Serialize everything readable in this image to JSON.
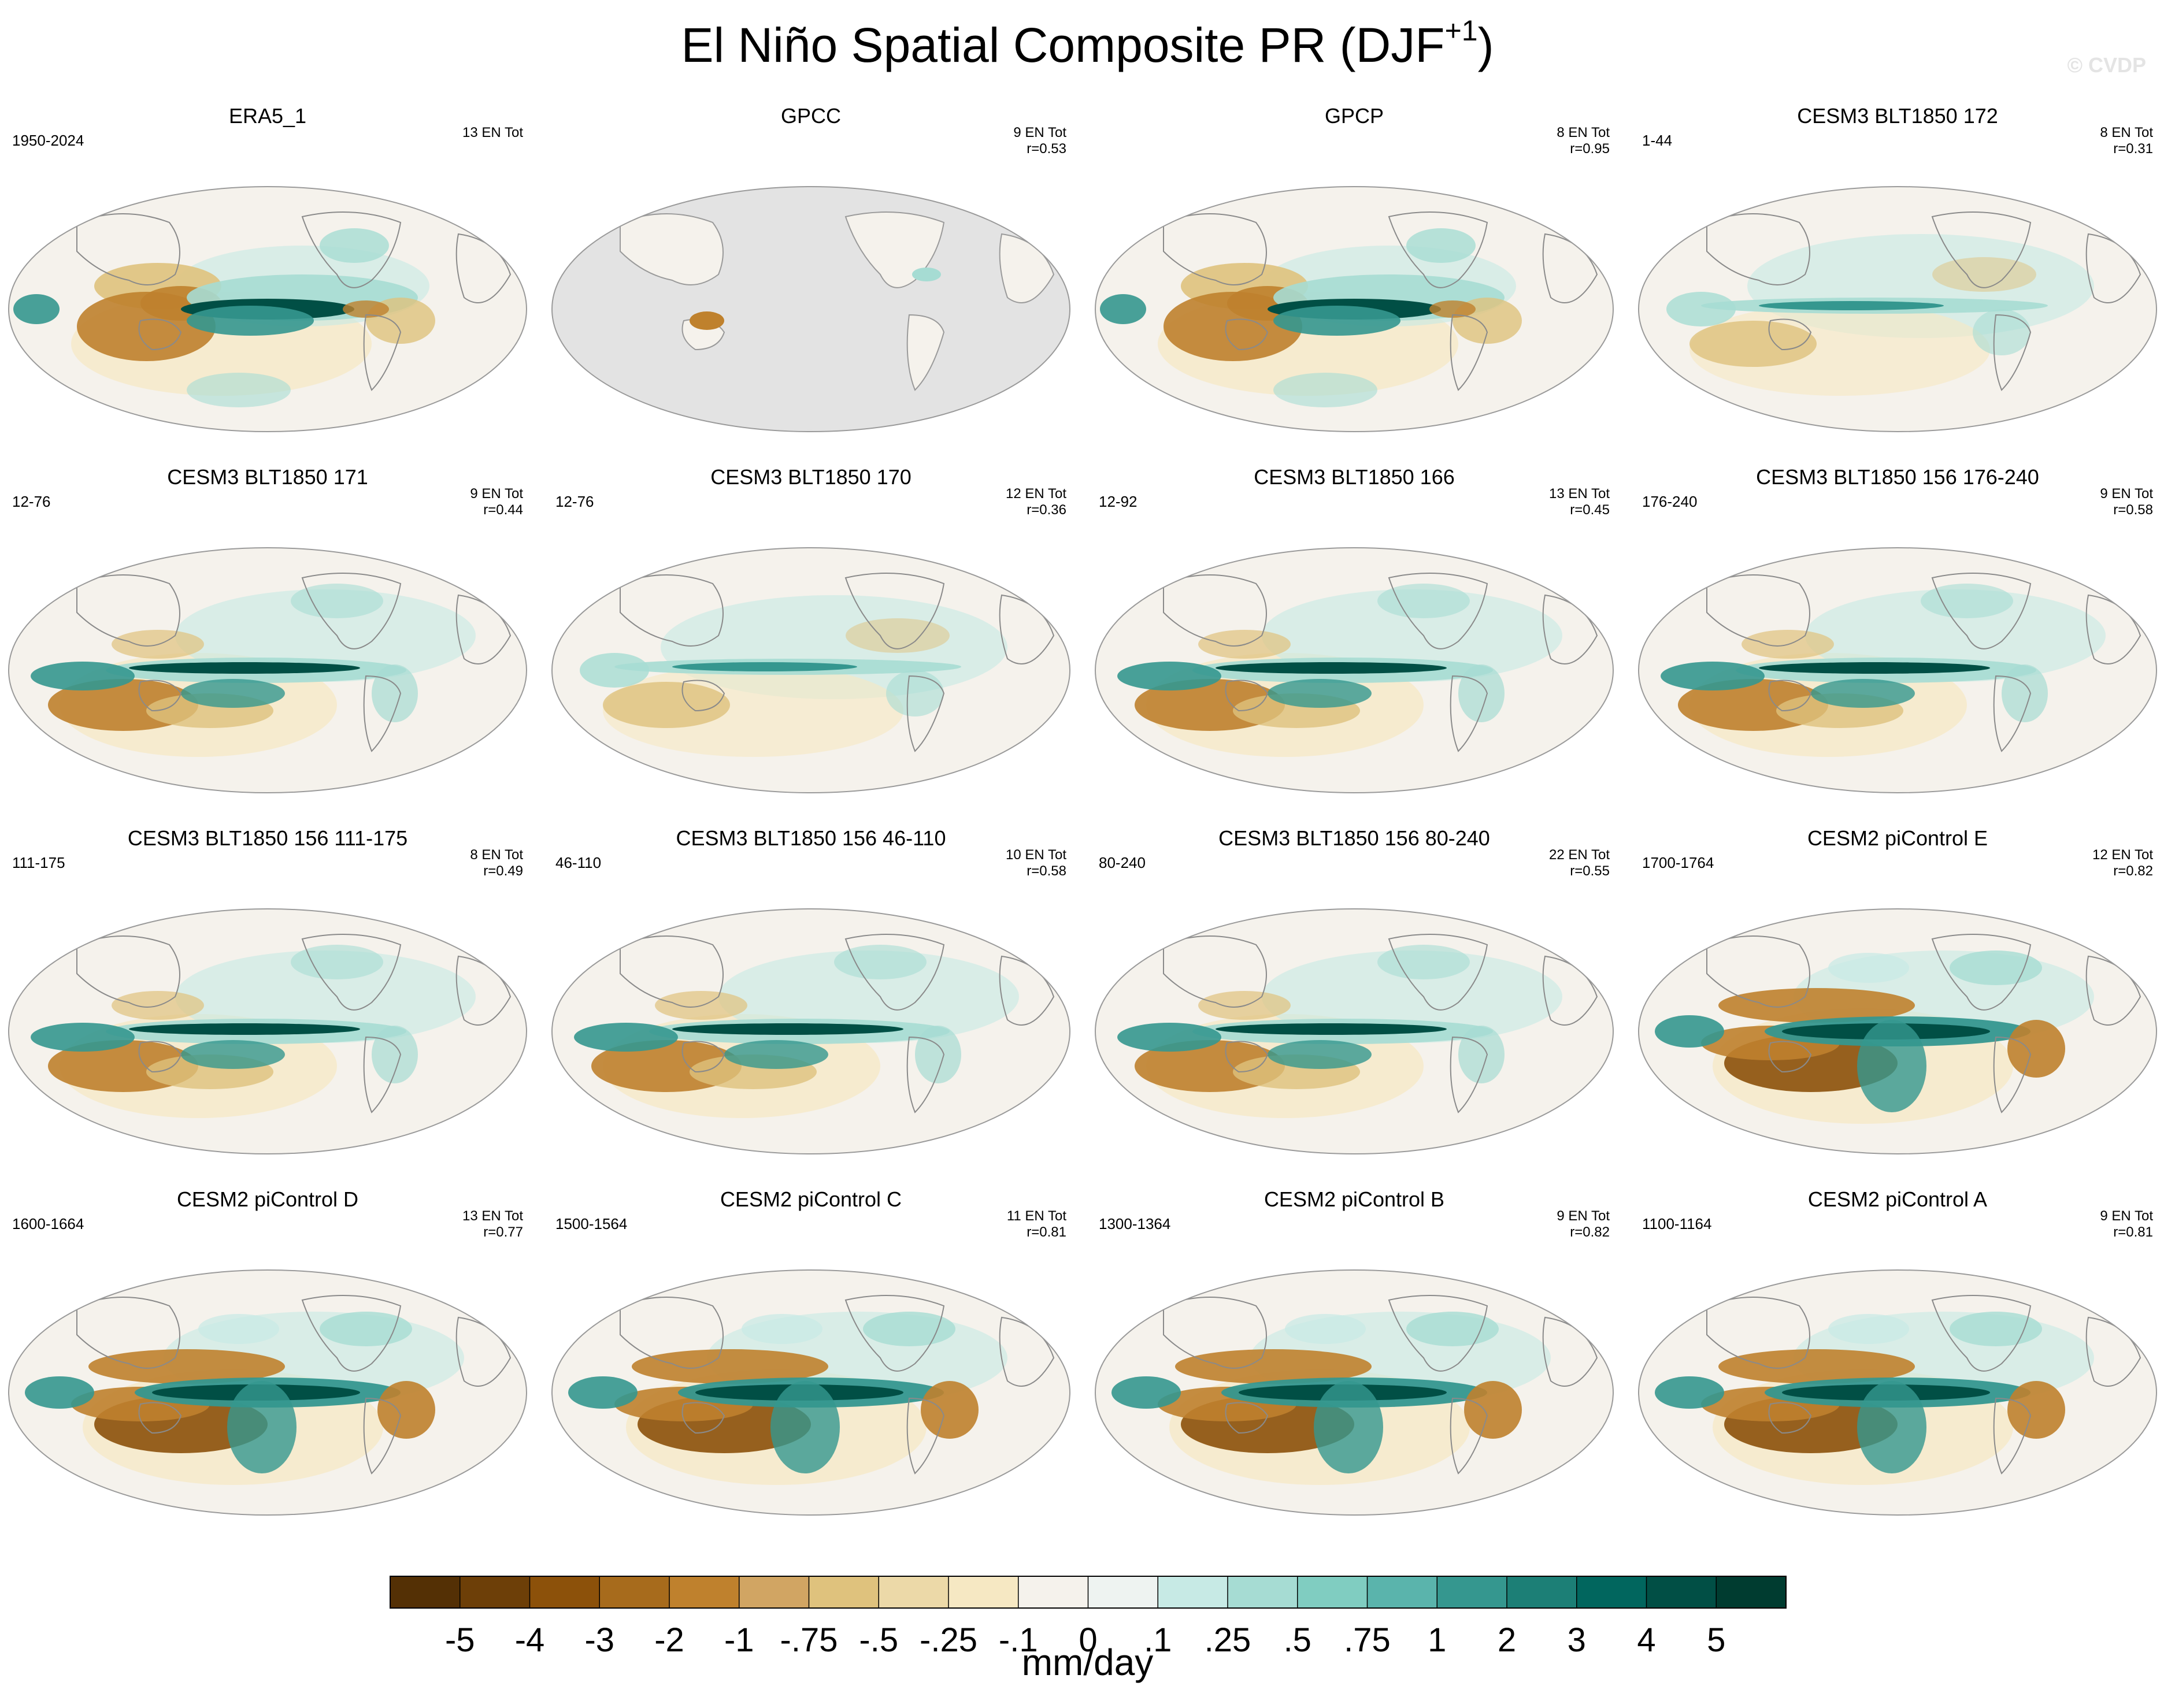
{
  "title": {
    "main": "El Niño Spatial Composite PR (DJF",
    "sup": "+1",
    "close": ")"
  },
  "watermark": "© CVDP",
  "units": "mm/day",
  "panels": [
    {
      "name": "ERA5_1",
      "years": "1950-2024",
      "en": "13 EN Tot",
      "r": "",
      "pattern": "obs"
    },
    {
      "name": "GPCC",
      "years": "",
      "en": "9 EN Tot",
      "r": "r=0.53",
      "pattern": "land"
    },
    {
      "name": "GPCP",
      "years": "",
      "en": "8 EN Tot",
      "r": "r=0.95",
      "pattern": "obs"
    },
    {
      "name": "CESM3 BLT1850 172",
      "years": "1-44",
      "en": "8 EN Tot",
      "r": "r=0.31",
      "pattern": "weak"
    },
    {
      "name": "CESM3 BLT1850 171",
      "years": "12-76",
      "en": "9 EN Tot",
      "r": "r=0.44",
      "pattern": "model"
    },
    {
      "name": "CESM3 BLT1850 170",
      "years": "12-76",
      "en": "12 EN Tot",
      "r": "r=0.36",
      "pattern": "weak"
    },
    {
      "name": "CESM3 BLT1850 166",
      "years": "12-92",
      "en": "13 EN Tot",
      "r": "r=0.45",
      "pattern": "model"
    },
    {
      "name": "CESM3 BLT1850 156 176-240",
      "years": "176-240",
      "en": "9 EN Tot",
      "r": "r=0.58",
      "pattern": "model"
    },
    {
      "name": "CESM3 BLT1850 156 111-175",
      "years": "111-175",
      "en": "8 EN Tot",
      "r": "r=0.49",
      "pattern": "model"
    },
    {
      "name": "CESM3 BLT1850 156 46-110",
      "years": "46-110",
      "en": "10 EN Tot",
      "r": "r=0.58",
      "pattern": "model"
    },
    {
      "name": "CESM3 BLT1850 156 80-240",
      "years": "80-240",
      "en": "22 EN Tot",
      "r": "r=0.55",
      "pattern": "model"
    },
    {
      "name": "CESM2 piControl E",
      "years": "1700-1764",
      "en": "12 EN Tot",
      "r": "r=0.82",
      "pattern": "strong"
    },
    {
      "name": "CESM2 piControl D",
      "years": "1600-1664",
      "en": "13 EN Tot",
      "r": "r=0.77",
      "pattern": "strong"
    },
    {
      "name": "CESM2 piControl C",
      "years": "1500-1564",
      "en": "11 EN Tot",
      "r": "r=0.81",
      "pattern": "strong"
    },
    {
      "name": "CESM2 piControl B",
      "years": "1300-1364",
      "en": "9 EN Tot",
      "r": "r=0.82",
      "pattern": "strong"
    },
    {
      "name": "CESM2 piControl A",
      "years": "1100-1164",
      "en": "9 EN Tot",
      "r": "r=0.81",
      "pattern": "strong"
    }
  ],
  "chart_data": {
    "type": "heatmap",
    "title": "El Niño Spatial Composite PR (DJF+1)",
    "projection": "Robinson global map, Pacific-centered",
    "colorbar": {
      "units": "mm/day",
      "tick_labels": [
        "-5",
        "-4",
        "-3",
        "-2",
        "-1",
        "-.75",
        "-.5",
        "-.25",
        "-.1",
        "0",
        ".1",
        ".25",
        ".5",
        ".75",
        "1",
        "2",
        "3",
        "4",
        "5"
      ],
      "levels": [
        -5,
        -4,
        -3,
        -2,
        -1,
        -0.75,
        -0.5,
        -0.25,
        -0.1,
        0,
        0.1,
        0.25,
        0.5,
        0.75,
        1,
        2,
        3,
        4,
        5
      ],
      "colors": [
        "#543005",
        "#6d3f08",
        "#8c510a",
        "#a76b1c",
        "#bf812d",
        "#d1a563",
        "#dfc27d",
        "#ecd9a8",
        "#f6e8c3",
        "#f5f2ec",
        "#eef3f1",
        "#c7eae5",
        "#a6dcd3",
        "#80cdc1",
        "#5ab4ac",
        "#35978f",
        "#1c7f76",
        "#01665e",
        "#014f45",
        "#003c30"
      ]
    },
    "rows": 4,
    "columns": 4
  }
}
